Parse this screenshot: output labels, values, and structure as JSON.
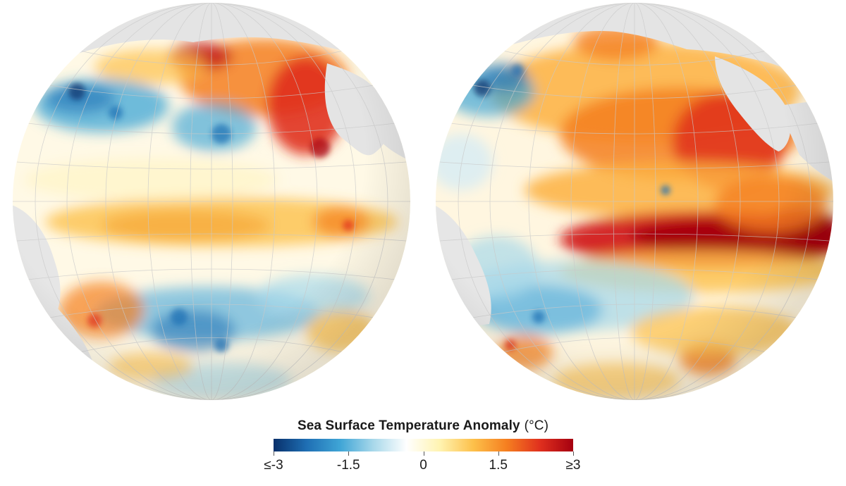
{
  "legend": {
    "title": "Sea Surface Temperature Anomaly",
    "unit": "(°C)",
    "ticks": [
      {
        "label": "≤-3",
        "value": -3
      },
      {
        "label": "-1.5",
        "value": -1.5
      },
      {
        "label": "0",
        "value": 0
      },
      {
        "label": "1.5",
        "value": 1.5
      },
      {
        "label": "≥3",
        "value": 3
      }
    ],
    "range": [
      -3,
      3
    ],
    "colors": [
      "#08306b",
      "#1f6fb4",
      "#3fa5d6",
      "#a8d8ea",
      "#ffffff",
      "#fff3b0",
      "#fdc04a",
      "#f57f20",
      "#e0301e",
      "#a50010"
    ]
  },
  "map": {
    "projection": "orthographic",
    "region": "Pacific Ocean",
    "panels": 2,
    "land_color": "#e4e4e4",
    "graticule": "on"
  }
}
